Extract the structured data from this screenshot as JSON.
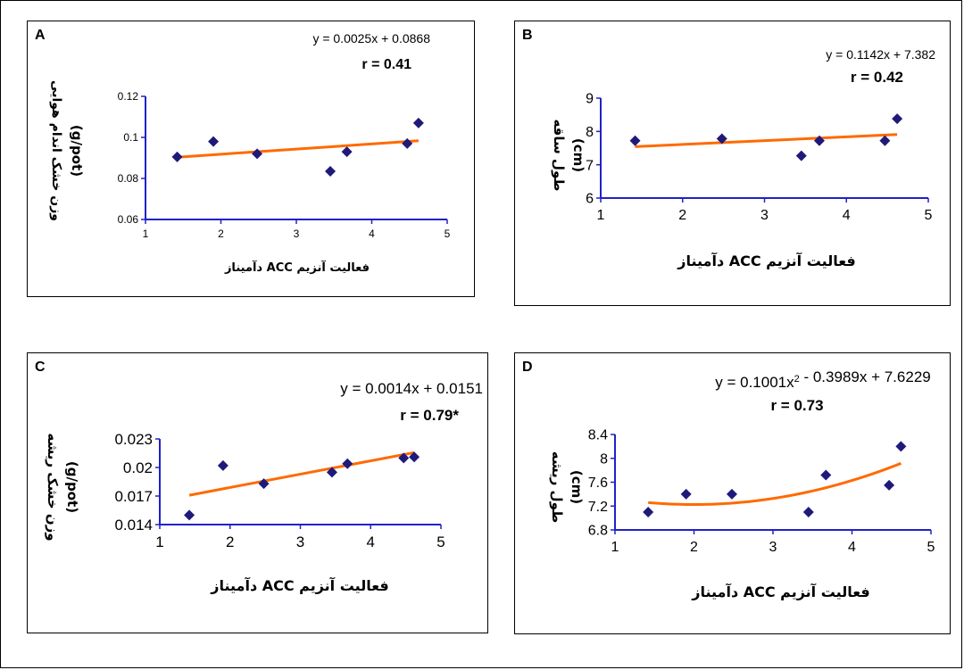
{
  "chart_data": [
    {
      "type": "scatter",
      "panel_label": "A",
      "equation": "y = 0.0025x + 0.0868",
      "r": "r = 0.41",
      "xlabel": "فعالیت آنزیم ACC دآمیناز",
      "ylabel": [
        "وزن خشک اندام هوایی",
        "(g/pot)"
      ],
      "xlim": [
        1,
        5
      ],
      "ylim": [
        0.06,
        0.12
      ],
      "xticks": [
        "1",
        "2",
        "3",
        "4",
        "5"
      ],
      "yticks": [
        "0.06",
        "0.08",
        "0.1",
        "0.12"
      ],
      "points": [
        [
          1.42,
          0.0905
        ],
        [
          1.9,
          0.098
        ],
        [
          2.48,
          0.092
        ],
        [
          3.45,
          0.0835
        ],
        [
          3.67,
          0.093
        ],
        [
          4.47,
          0.097
        ],
        [
          4.62,
          0.107
        ]
      ],
      "trendline": {
        "kind": "linear",
        "coef": [
          0.0868,
          0.0025
        ],
        "x_range": [
          1.42,
          4.62
        ]
      },
      "colors": {
        "marker": "#1f1a7a",
        "trend": "#ff6a00",
        "axis": "#1e22c8"
      }
    },
    {
      "type": "scatter",
      "panel_label": "B",
      "equation": "y = 0.1142x + 7.382",
      "r": "r = 0.42",
      "xlabel": "فعالیت آنزیم ACC دآمیناز",
      "ylabel": [
        "طول ساقه",
        "(cm)"
      ],
      "xlim": [
        1,
        5
      ],
      "ylim": [
        6,
        9
      ],
      "xticks": [
        "1",
        "2",
        "3",
        "4",
        "5"
      ],
      "yticks": [
        "6",
        "7",
        "8",
        "9"
      ],
      "points": [
        [
          1.42,
          7.72
        ],
        [
          2.48,
          7.78
        ],
        [
          3.45,
          7.27
        ],
        [
          3.67,
          7.72
        ],
        [
          4.47,
          7.72
        ],
        [
          4.62,
          8.38
        ]
      ],
      "trendline": {
        "kind": "linear",
        "coef": [
          7.382,
          0.1142
        ],
        "x_range": [
          1.42,
          4.62
        ]
      },
      "colors": {
        "marker": "#1f1a7a",
        "trend": "#ff6a00",
        "axis": "#1e22c8"
      }
    },
    {
      "type": "scatter",
      "panel_label": "C",
      "equation": "y = 0.0014x + 0.0151",
      "r": "r = 0.79*",
      "xlabel": "فعالیت آنزیم ACC دآمیناز",
      "ylabel": [
        "وزن خشک ریشه",
        "(g/pot)"
      ],
      "xlim": [
        1,
        5
      ],
      "ylim": [
        0.014,
        0.023
      ],
      "xticks": [
        "1",
        "2",
        "3",
        "4",
        "5"
      ],
      "yticks": [
        "0.014",
        "0.017",
        "0.02",
        "0.023"
      ],
      "points": [
        [
          1.42,
          0.015
        ],
        [
          1.9,
          0.0202
        ],
        [
          2.48,
          0.0183
        ],
        [
          3.45,
          0.0195
        ],
        [
          3.67,
          0.0204
        ],
        [
          4.47,
          0.021
        ],
        [
          4.62,
          0.0211
        ]
      ],
      "trendline": {
        "kind": "linear",
        "coef": [
          0.0151,
          0.0014
        ],
        "x_range": [
          1.42,
          4.62
        ]
      },
      "colors": {
        "marker": "#1f1a7a",
        "trend": "#ff6a00",
        "axis": "#1e22c8"
      }
    },
    {
      "type": "scatter",
      "panel_label": "D",
      "equation": "y = 0.1001x² - 0.3989x + 7.6229",
      "r": "r = 0.73",
      "xlabel": "فعالیت آنزیم  ACC دآمیناز",
      "ylabel": [
        "طول ریشه",
        "(cm)"
      ],
      "xlim": [
        1,
        5
      ],
      "ylim": [
        6.8,
        8.4
      ],
      "xticks": [
        "1",
        "2",
        "3",
        "4",
        "5"
      ],
      "yticks": [
        "6.8",
        "7.2",
        "7.6",
        "8",
        "8.4"
      ],
      "points": [
        [
          1.42,
          7.1
        ],
        [
          1.9,
          7.4
        ],
        [
          2.48,
          7.4
        ],
        [
          3.45,
          7.1
        ],
        [
          3.67,
          7.72
        ],
        [
          4.47,
          7.55
        ],
        [
          4.62,
          8.2
        ]
      ],
      "trendline": {
        "kind": "poly2",
        "coef": [
          7.6229,
          -0.3989,
          0.1001
        ],
        "x_range": [
          1.42,
          4.62
        ]
      },
      "colors": {
        "marker": "#1f1a7a",
        "trend": "#ff6a00",
        "axis": "#1e22c8"
      }
    }
  ]
}
